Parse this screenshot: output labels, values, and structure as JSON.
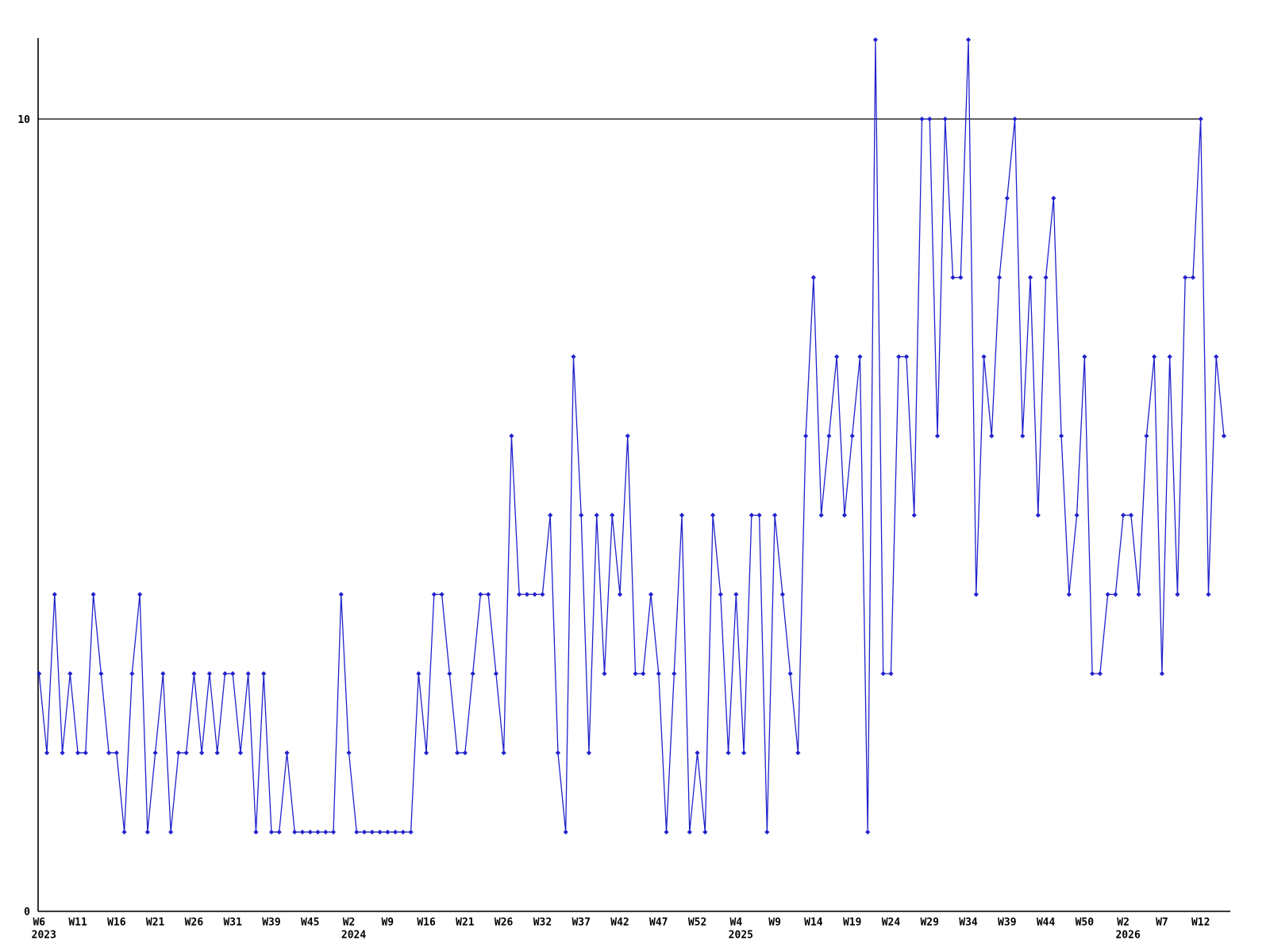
{
  "chart_data": {
    "type": "line",
    "title": "",
    "xlabel": "",
    "ylabel": "",
    "series_color": "#2121cd",
    "axis_color": "#000000",
    "background_color": "#ffffff",
    "grid_on": false,
    "reference_line_value": 10,
    "ylim": [
      0,
      11.5
    ],
    "y_axis_labels": {
      "zero": "0",
      "ten": "10"
    },
    "values": [
      3,
      2,
      4,
      2,
      3,
      2,
      2,
      4,
      3,
      2,
      2,
      1,
      3,
      4,
      1,
      2,
      3,
      1,
      2,
      2,
      3,
      2,
      3,
      2,
      3,
      3,
      2,
      3,
      1,
      3,
      1,
      1,
      2,
      1,
      1,
      1,
      1,
      1,
      1,
      4,
      2,
      1,
      1,
      1,
      1,
      1,
      1,
      1,
      1,
      3,
      2,
      4,
      4,
      3,
      2,
      2,
      3,
      4,
      4,
      3,
      2,
      6,
      4,
      4,
      4,
      4,
      5,
      2,
      1,
      7,
      5,
      2,
      5,
      3,
      5,
      4,
      6,
      3,
      3,
      4,
      3,
      1,
      3,
      5,
      1,
      2,
      1,
      5,
      4,
      2,
      4,
      2,
      5,
      5,
      1,
      5,
      4,
      3,
      2,
      6,
      8,
      5,
      6,
      7,
      5,
      6,
      7,
      1,
      11,
      3,
      3,
      7,
      7,
      5,
      10,
      10,
      6,
      10,
      8,
      8,
      11,
      4,
      7,
      6,
      8,
      9,
      10,
      6,
      8,
      5,
      8,
      9,
      6,
      4,
      5,
      7,
      3,
      3,
      4,
      4,
      5,
      5,
      4,
      6,
      7,
      3,
      7,
      4,
      8,
      8,
      10,
      4,
      7,
      6
    ],
    "tick_labels": [
      {
        "index": 0,
        "label": "W6",
        "year": "2023"
      },
      {
        "index": 5,
        "label": "W11"
      },
      {
        "index": 10,
        "label": "W16"
      },
      {
        "index": 15,
        "label": "W21"
      },
      {
        "index": 20,
        "label": "W26"
      },
      {
        "index": 25,
        "label": "W31"
      },
      {
        "index": 30,
        "label": "W39"
      },
      {
        "index": 35,
        "label": "W45"
      },
      {
        "index": 40,
        "label": "W2",
        "year": "2024"
      },
      {
        "index": 45,
        "label": "W9"
      },
      {
        "index": 50,
        "label": "W16"
      },
      {
        "index": 55,
        "label": "W21"
      },
      {
        "index": 60,
        "label": "W26"
      },
      {
        "index": 65,
        "label": "W32"
      },
      {
        "index": 70,
        "label": "W37"
      },
      {
        "index": 75,
        "label": "W42"
      },
      {
        "index": 80,
        "label": "W47"
      },
      {
        "index": 85,
        "label": "W52"
      },
      {
        "index": 90,
        "label": "W4",
        "year": "2025"
      },
      {
        "index": 95,
        "label": "W9"
      },
      {
        "index": 100,
        "label": "W14"
      },
      {
        "index": 105,
        "label": "W19"
      },
      {
        "index": 110,
        "label": "W24"
      },
      {
        "index": 115,
        "label": "W29"
      },
      {
        "index": 120,
        "label": "W34"
      },
      {
        "index": 125,
        "label": "W39"
      },
      {
        "index": 130,
        "label": "W44"
      },
      {
        "index": 135,
        "label": "W50"
      },
      {
        "index": 140,
        "label": "W2",
        "year": "2026"
      },
      {
        "index": 145,
        "label": "W7"
      },
      {
        "index": 150,
        "label": "W12"
      }
    ]
  },
  "layout_note": "weekly count time-series 2023-2026"
}
